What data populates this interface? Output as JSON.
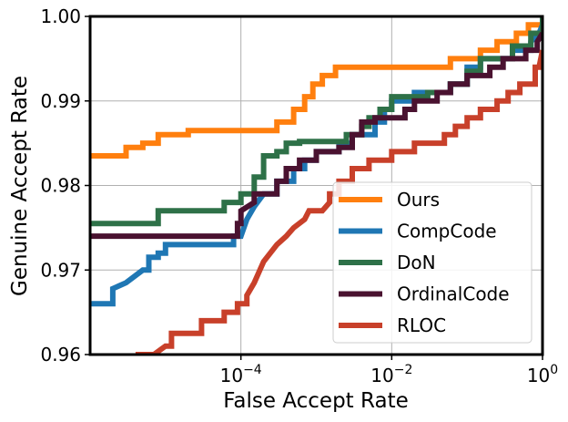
{
  "chart_data": {
    "type": "line",
    "title": "",
    "xlabel": "False Accept Rate",
    "ylabel": "Genuine Accept Rate",
    "xscale": "log",
    "xlim": [
      1e-06,
      1
    ],
    "ylim": [
      0.96,
      1.0
    ],
    "grid": true,
    "legend_position": "lower-right",
    "x_ticks": [
      {
        "value": 0.0001,
        "base": "10",
        "exp": "−4"
      },
      {
        "value": 0.01,
        "base": "10",
        "exp": "−2"
      },
      {
        "value": 1,
        "base": "10",
        "exp": "0"
      }
    ],
    "y_ticks": [
      {
        "value": 0.96,
        "label": "0.96"
      },
      {
        "value": 0.97,
        "label": "0.97"
      },
      {
        "value": 0.98,
        "label": "0.98"
      },
      {
        "value": 0.99,
        "label": "0.99"
      },
      {
        "value": 1.0,
        "label": "1.00"
      }
    ],
    "series": [
      {
        "name": "Ours",
        "color": "#ff7f0e",
        "points": [
          [
            1e-06,
            0.9835
          ],
          [
            3e-06,
            0.9835
          ],
          [
            3e-06,
            0.9845
          ],
          [
            5e-06,
            0.9845
          ],
          [
            5e-06,
            0.985
          ],
          [
            8e-06,
            0.985
          ],
          [
            8e-06,
            0.986
          ],
          [
            2e-05,
            0.986
          ],
          [
            2e-05,
            0.9865
          ],
          [
            0.0003,
            0.9865
          ],
          [
            0.0003,
            0.9875
          ],
          [
            0.0005,
            0.9875
          ],
          [
            0.0005,
            0.989
          ],
          [
            0.0007,
            0.989
          ],
          [
            0.0007,
            0.9905
          ],
          [
            0.0009,
            0.9905
          ],
          [
            0.0009,
            0.992
          ],
          [
            0.0012,
            0.992
          ],
          [
            0.0012,
            0.993
          ],
          [
            0.0018,
            0.993
          ],
          [
            0.0018,
            0.994
          ],
          [
            0.06,
            0.994
          ],
          [
            0.06,
            0.995
          ],
          [
            0.15,
            0.995
          ],
          [
            0.15,
            0.996
          ],
          [
            0.25,
            0.996
          ],
          [
            0.25,
            0.997
          ],
          [
            0.45,
            0.997
          ],
          [
            0.45,
            0.998
          ],
          [
            0.65,
            0.998
          ],
          [
            0.65,
            0.999
          ],
          [
            1,
            0.999
          ],
          [
            1,
            1.0
          ]
        ]
      },
      {
        "name": "CompCode",
        "color": "#1f77b4",
        "points": [
          [
            1e-06,
            0.966
          ],
          [
            2e-06,
            0.966
          ],
          [
            2e-06,
            0.9678
          ],
          [
            3e-06,
            0.9685
          ],
          [
            5e-06,
            0.97
          ],
          [
            6e-06,
            0.97
          ],
          [
            6e-06,
            0.9715
          ],
          [
            8e-06,
            0.9715
          ],
          [
            8e-06,
            0.972
          ],
          [
            1e-05,
            0.972
          ],
          [
            1e-05,
            0.973
          ],
          [
            8e-05,
            0.973
          ],
          [
            8e-05,
            0.974
          ],
          [
            0.0001,
            0.974
          ],
          [
            0.00012,
            0.976
          ],
          [
            0.00015,
            0.9775
          ],
          [
            0.0002,
            0.979
          ],
          [
            0.0003,
            0.979
          ],
          [
            0.0003,
            0.9805
          ],
          [
            0.0005,
            0.9805
          ],
          [
            0.0005,
            0.982
          ],
          [
            0.0007,
            0.982
          ],
          [
            0.0007,
            0.983
          ],
          [
            0.001,
            0.983
          ],
          [
            0.001,
            0.984
          ],
          [
            0.002,
            0.984
          ],
          [
            0.002,
            0.985
          ],
          [
            0.003,
            0.985
          ],
          [
            0.003,
            0.986
          ],
          [
            0.006,
            0.986
          ],
          [
            0.006,
            0.9875
          ],
          [
            0.008,
            0.9875
          ],
          [
            0.008,
            0.989
          ],
          [
            0.01,
            0.989
          ],
          [
            0.01,
            0.99
          ],
          [
            0.02,
            0.99
          ],
          [
            0.02,
            0.991
          ],
          [
            0.06,
            0.991
          ],
          [
            0.06,
            0.992
          ],
          [
            0.1,
            0.992
          ],
          [
            0.1,
            0.994
          ],
          [
            0.15,
            0.994
          ],
          [
            0.15,
            0.995
          ],
          [
            0.4,
            0.995
          ],
          [
            0.4,
            0.996
          ],
          [
            0.7,
            0.996
          ],
          [
            0.7,
            0.997
          ],
          [
            0.9,
            0.998
          ],
          [
            1,
            0.999
          ]
        ]
      },
      {
        "name": "DoN",
        "color": "#2e7148",
        "points": [
          [
            1e-06,
            0.9755
          ],
          [
            8e-06,
            0.9755
          ],
          [
            8e-06,
            0.977
          ],
          [
            6e-05,
            0.977
          ],
          [
            6e-05,
            0.978
          ],
          [
            0.0001,
            0.978
          ],
          [
            0.0001,
            0.979
          ],
          [
            0.00015,
            0.979
          ],
          [
            0.00015,
            0.981
          ],
          [
            0.0002,
            0.981
          ],
          [
            0.0002,
            0.9835
          ],
          [
            0.0003,
            0.9835
          ],
          [
            0.0003,
            0.984
          ],
          [
            0.0004,
            0.984
          ],
          [
            0.0004,
            0.985
          ],
          [
            0.0006,
            0.985
          ],
          [
            0.0006,
            0.9852
          ],
          [
            0.0025,
            0.9852
          ],
          [
            0.0025,
            0.986
          ],
          [
            0.004,
            0.986
          ],
          [
            0.004,
            0.987
          ],
          [
            0.005,
            0.987
          ],
          [
            0.005,
            0.988
          ],
          [
            0.007,
            0.988
          ],
          [
            0.007,
            0.989
          ],
          [
            0.01,
            0.989
          ],
          [
            0.01,
            0.9905
          ],
          [
            0.03,
            0.9905
          ],
          [
            0.03,
            0.991
          ],
          [
            0.06,
            0.991
          ],
          [
            0.06,
            0.992
          ],
          [
            0.1,
            0.992
          ],
          [
            0.1,
            0.9935
          ],
          [
            0.15,
            0.9935
          ],
          [
            0.15,
            0.995
          ],
          [
            0.4,
            0.995
          ],
          [
            0.4,
            0.9965
          ],
          [
            0.7,
            0.9965
          ],
          [
            0.7,
            0.998
          ],
          [
            1,
            0.998
          ],
          [
            1,
            1.0
          ]
        ]
      },
      {
        "name": "OrdinalCode",
        "color": "#4a1230",
        "points": [
          [
            1e-06,
            0.974
          ],
          [
            9e-05,
            0.974
          ],
          [
            9e-05,
            0.9755
          ],
          [
            0.0001,
            0.9755
          ],
          [
            0.0001,
            0.977
          ],
          [
            0.00015,
            0.978
          ],
          [
            0.00015,
            0.979
          ],
          [
            0.0003,
            0.979
          ],
          [
            0.0003,
            0.9805
          ],
          [
            0.0004,
            0.9805
          ],
          [
            0.0004,
            0.982
          ],
          [
            0.0006,
            0.982
          ],
          [
            0.0006,
            0.983
          ],
          [
            0.001,
            0.983
          ],
          [
            0.001,
            0.984
          ],
          [
            0.002,
            0.984
          ],
          [
            0.002,
            0.9845
          ],
          [
            0.003,
            0.9845
          ],
          [
            0.003,
            0.986
          ],
          [
            0.004,
            0.986
          ],
          [
            0.004,
            0.9875
          ],
          [
            0.006,
            0.9875
          ],
          [
            0.006,
            0.988
          ],
          [
            0.015,
            0.988
          ],
          [
            0.015,
            0.989
          ],
          [
            0.02,
            0.989
          ],
          [
            0.02,
            0.99
          ],
          [
            0.04,
            0.99
          ],
          [
            0.04,
            0.991
          ],
          [
            0.06,
            0.991
          ],
          [
            0.06,
            0.992
          ],
          [
            0.1,
            0.992
          ],
          [
            0.1,
            0.993
          ],
          [
            0.2,
            0.993
          ],
          [
            0.2,
            0.994
          ],
          [
            0.3,
            0.994
          ],
          [
            0.3,
            0.995
          ],
          [
            0.6,
            0.995
          ],
          [
            0.6,
            0.996
          ],
          [
            0.85,
            0.996
          ],
          [
            0.85,
            0.997
          ],
          [
            1,
            0.998
          ]
        ]
      },
      {
        "name": "RLOC",
        "color": "#c8402a",
        "points": [
          [
            4e-06,
            0.96
          ],
          [
            7e-06,
            0.96
          ],
          [
            1e-05,
            0.961
          ],
          [
            1.2e-05,
            0.961
          ],
          [
            1.2e-05,
            0.9625
          ],
          [
            3e-05,
            0.9625
          ],
          [
            3e-05,
            0.964
          ],
          [
            6e-05,
            0.964
          ],
          [
            6e-05,
            0.965
          ],
          [
            9e-05,
            0.965
          ],
          [
            9e-05,
            0.966
          ],
          [
            0.00012,
            0.966
          ],
          [
            0.00012,
            0.967
          ],
          [
            0.00015,
            0.9685
          ],
          [
            0.0002,
            0.971
          ],
          [
            0.0003,
            0.973
          ],
          [
            0.0004,
            0.974
          ],
          [
            0.0005,
            0.975
          ],
          [
            0.0007,
            0.976
          ],
          [
            0.0008,
            0.977
          ],
          [
            0.0012,
            0.977
          ],
          [
            0.0015,
            0.978
          ],
          [
            0.0015,
            0.979
          ],
          [
            0.002,
            0.979
          ],
          [
            0.002,
            0.9805
          ],
          [
            0.003,
            0.9805
          ],
          [
            0.003,
            0.982
          ],
          [
            0.005,
            0.982
          ],
          [
            0.005,
            0.983
          ],
          [
            0.01,
            0.983
          ],
          [
            0.01,
            0.984
          ],
          [
            0.02,
            0.984
          ],
          [
            0.02,
            0.985
          ],
          [
            0.05,
            0.985
          ],
          [
            0.05,
            0.986
          ],
          [
            0.07,
            0.986
          ],
          [
            0.07,
            0.987
          ],
          [
            0.1,
            0.987
          ],
          [
            0.1,
            0.988
          ],
          [
            0.15,
            0.988
          ],
          [
            0.15,
            0.989
          ],
          [
            0.25,
            0.989
          ],
          [
            0.25,
            0.99
          ],
          [
            0.35,
            0.99
          ],
          [
            0.35,
            0.991
          ],
          [
            0.5,
            0.991
          ],
          [
            0.5,
            0.992
          ],
          [
            0.8,
            0.992
          ],
          [
            0.8,
            0.994
          ],
          [
            0.9,
            0.994
          ],
          [
            1,
            0.996
          ]
        ]
      }
    ]
  }
}
